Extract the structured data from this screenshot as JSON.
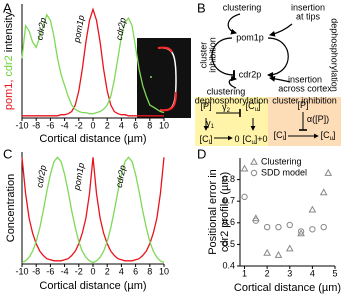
{
  "panel_labels": [
    "A",
    "B",
    "C",
    "D"
  ],
  "chart_data": [
    {
      "type": "line",
      "xlabel": "Cortical distance (µm)",
      "ylabel_parts": [
        {
          "text": "pom1,",
          "color": "#e8141c"
        },
        {
          "text": "cdr2",
          "color": "#6fd13a"
        },
        {
          "text": "intensity",
          "color": "#000000"
        }
      ],
      "x": [
        -10,
        -9.5,
        -9,
        -8.5,
        -8,
        -7.5,
        -7,
        -6.5,
        -6,
        -5.5,
        -5,
        -4.5,
        -4,
        -3.5,
        -3,
        -2.5,
        -2,
        -1.5,
        -1,
        -0.5,
        0,
        0.5,
        1,
        1.5,
        2,
        2.5,
        3,
        3.5,
        4,
        4.5,
        5,
        5.5,
        6,
        6.5,
        7,
        7.5,
        8,
        8.5,
        9,
        9.5,
        10
      ],
      "series": [
        {
          "color": "#e8141c",
          "values": [
            0.02,
            0.02,
            0.02,
            0.02,
            0.02,
            0.02,
            0.02,
            0.02,
            0.02,
            0.02,
            0.02,
            0.03,
            0.03,
            0.04,
            0.06,
            0.12,
            0.25,
            0.45,
            0.7,
            0.9,
            1.0,
            0.9,
            0.7,
            0.45,
            0.25,
            0.12,
            0.06,
            0.04,
            0.03,
            0.03,
            0.02,
            0.02,
            0.02,
            0.02,
            0.02,
            0.02,
            0.02,
            0.02,
            0.02,
            0.02,
            0.02
          ]
        },
        {
          "color": "#7ed957",
          "values": [
            0.55,
            0.85,
            0.8,
            0.7,
            0.65,
            0.75,
            0.85,
            0.95,
            0.9,
            0.75,
            0.55,
            0.4,
            0.3,
            0.2,
            0.12,
            0.08,
            0.06,
            0.05,
            0.05,
            0.04,
            0.04,
            0.05,
            0.06,
            0.08,
            0.12,
            0.2,
            0.35,
            0.55,
            0.75,
            0.88,
            0.92,
            0.85,
            0.65,
            0.45,
            0.3,
            0.2,
            0.12,
            0.1,
            0.08,
            0.06,
            0.05
          ]
        }
      ],
      "xlim": [
        -10,
        10
      ],
      "ylim": [
        0,
        1.05
      ],
      "xticks": [
        -10,
        -8,
        -6,
        -4,
        -2,
        0,
        2,
        4,
        6,
        8,
        10
      ],
      "annotations": [
        "cdr2p",
        "pom1p",
        "cdr2p"
      ]
    },
    {
      "type": "line",
      "xlabel": "Cortical distance (µm)",
      "ylabel_parts": [
        {
          "text": "Concentration",
          "color": "#000000"
        }
      ],
      "x": [
        -10,
        -9.5,
        -9,
        -8.5,
        -8,
        -7.5,
        -7,
        -6.5,
        -6,
        -5.5,
        -5,
        -4.5,
        -4,
        -3.5,
        -3,
        -2.5,
        -2,
        -1.5,
        -1,
        -0.5,
        0,
        0.5,
        1,
        1.5,
        2,
        2.5,
        3,
        3.5,
        4,
        4.5,
        5,
        5.5,
        6,
        6.5,
        7,
        7.5,
        8,
        8.5,
        9,
        9.5,
        10
      ],
      "series": [
        {
          "color": "#e8141c",
          "values": [
            1.0,
            0.66,
            0.43,
            0.29,
            0.19,
            0.12,
            0.08,
            0.05,
            0.04,
            0.03,
            0.03,
            0.03,
            0.04,
            0.05,
            0.08,
            0.12,
            0.19,
            0.29,
            0.43,
            0.66,
            1.0,
            0.66,
            0.43,
            0.29,
            0.19,
            0.12,
            0.08,
            0.05,
            0.04,
            0.03,
            0.03,
            0.03,
            0.04,
            0.05,
            0.08,
            0.12,
            0.19,
            0.29,
            0.43,
            0.66,
            1.0
          ]
        },
        {
          "color": "#7ed957",
          "values": [
            0.013,
            0.03,
            0.063,
            0.12,
            0.21,
            0.34,
            0.5,
            0.68,
            0.84,
            0.96,
            1.0,
            0.96,
            0.84,
            0.68,
            0.5,
            0.34,
            0.21,
            0.12,
            0.063,
            0.03,
            0.013,
            0.03,
            0.063,
            0.12,
            0.21,
            0.34,
            0.5,
            0.68,
            0.84,
            0.96,
            1.0,
            0.96,
            0.84,
            0.68,
            0.5,
            0.34,
            0.21,
            0.12,
            0.063,
            0.03,
            0.013
          ]
        }
      ],
      "xlim": [
        -10,
        10
      ],
      "ylim": [
        0,
        1.05
      ],
      "xticks": [
        -10,
        -8,
        -6,
        -4,
        -2,
        0,
        2,
        4,
        6,
        8,
        10
      ],
      "annotations": [
        "cdr2p",
        "pom1p",
        "cdr2p"
      ]
    },
    {
      "type": "scatter",
      "xlabel": "Cortical distance (µm)",
      "ylabel_lines": [
        "Positional error in",
        "cdr2 profile (µm)"
      ],
      "series": [
        {
          "name": "Clustering",
          "marker": "triangle",
          "color": "#888888",
          "x": [
            1,
            1.5,
            2,
            2.5,
            3,
            3.5,
            4,
            4.5,
            4.7
          ],
          "values": [
            0.85,
            0.62,
            0.46,
            0.45,
            0.48,
            0.55,
            0.66,
            0.74,
            0.83
          ]
        },
        {
          "name": "SDD model",
          "marker": "circle",
          "color": "#888888",
          "x": [
            1,
            1.5,
            2,
            2.5,
            3,
            3.5,
            4,
            4.5
          ],
          "values": [
            0.72,
            0.61,
            0.58,
            0.58,
            0.59,
            0.56,
            0.57,
            0.58
          ]
        }
      ],
      "xlim": [
        0.8,
        5
      ],
      "ylim": [
        0.4,
        0.9
      ],
      "xticks": [
        1,
        2,
        3,
        4,
        5
      ],
      "yticks": [
        0.4,
        0.5,
        0.6,
        0.7,
        0.8
      ],
      "legend": "upper-left"
    }
  ],
  "diagram": {
    "nodes": {
      "pom1p": "pom1p",
      "cdr2p": "cdr2p"
    },
    "edge_labels": [
      [
        "clustering"
      ],
      [
        "insertion",
        "at tips"
      ],
      [
        "dephosphorylation"
      ],
      [
        "cluster",
        "inhibition"
      ],
      [
        "clustering"
      ],
      [
        "insertion",
        "across cortex"
      ]
    ],
    "boxes": [
      {
        "title": "dephosphorylation",
        "color": "#fff4a8",
        "terms": [
          {
            "main": "[P]"
          },
          {
            "main": "[C",
            "sub": "u",
            "end": "]"
          },
          {
            "main": "γ",
            "sub": "2"
          },
          {
            "main": "γ",
            "sub": "1"
          },
          {
            "main": "[C",
            "sub": "l",
            "end": "]"
          },
          {
            "main": "0"
          },
          {
            "main": "[C",
            "sub": "u",
            "end": "]+0"
          }
        ]
      },
      {
        "title": "cluster inhibition",
        "color": "#fddcb8",
        "terms": [
          {
            "main": "[P]"
          },
          {
            "main": "α([P])"
          },
          {
            "main": "[C",
            "sub": "l",
            "end": "]"
          },
          {
            "main": "[C",
            "sub": "u",
            "end": "]"
          }
        ]
      }
    ]
  }
}
